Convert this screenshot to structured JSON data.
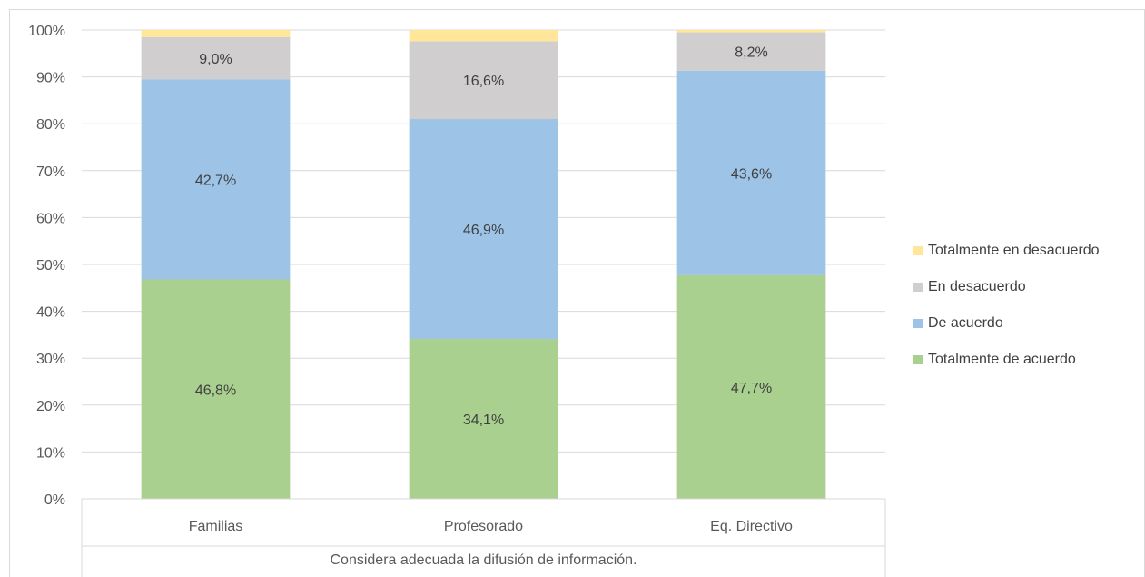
{
  "chart_data": {
    "type": "bar",
    "stacked": true,
    "percent_stacked": true,
    "categories": [
      "Familias",
      "Profesorado",
      "Eq. Directivo"
    ],
    "category_title": "Considera adecuada la difusión de información.",
    "yticks": [
      "0%",
      "10%",
      "20%",
      "30%",
      "40%",
      "50%",
      "60%",
      "70%",
      "80%",
      "90%",
      "100%"
    ],
    "ylim": [
      0,
      100
    ],
    "grid": true,
    "legend_position": "right",
    "series": [
      {
        "name": "Totalmente de acuerdo",
        "color": "#A9D08E",
        "values": [
          46.8,
          34.1,
          47.7
        ],
        "labels": [
          "46,8%",
          "34,1%",
          "47,7%"
        ]
      },
      {
        "name": "De acuerdo",
        "color": "#9DC3E6",
        "values": [
          42.7,
          46.9,
          43.6
        ],
        "labels": [
          "42,7%",
          "46,9%",
          "43,6%"
        ]
      },
      {
        "name": "En desacuerdo",
        "color": "#D0CECE",
        "values": [
          9.0,
          16.6,
          8.2
        ],
        "labels": [
          "9,0%",
          "16,6%",
          "8,2%"
        ]
      },
      {
        "name": "Totalmente en desacuerdo",
        "color": "#FFE699",
        "values": [
          1.5,
          2.4,
          0.5
        ],
        "labels": [
          "",
          "",
          ""
        ]
      }
    ]
  }
}
